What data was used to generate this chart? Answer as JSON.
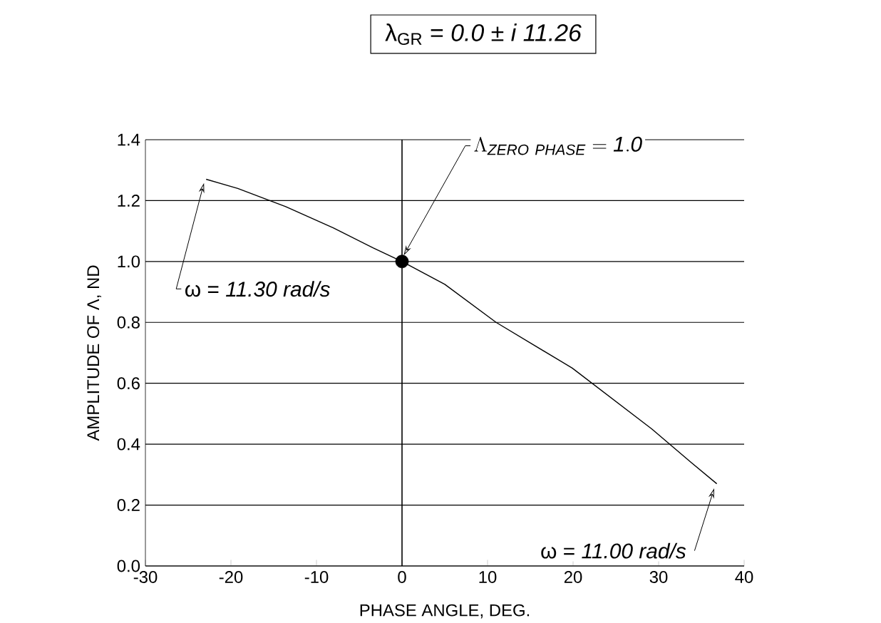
{
  "chart_data": {
    "type": "line",
    "title": "λ$_{GR}$ = *0.0 ± i 11.26*",
    "xlabel": "PHASE ANGLE, DEG.",
    "ylabel": "AMPLITUDE OF Λ, ND",
    "xlim": [
      -30,
      40
    ],
    "xticks": [
      -30,
      -20,
      -10,
      0,
      10,
      20,
      30,
      40
    ],
    "ylim": [
      0,
      1.4
    ],
    "yticks": [
      {
        "value": 0,
        "label": "0.0"
      },
      0.2,
      0.4,
      0.6,
      0.8,
      {
        "value": 1,
        "label": "1.0"
      },
      1.2,
      1.4
    ],
    "grid": "y",
    "ref_lines": [
      {
        "axis": "x",
        "value": 0,
        "color": "#000000"
      }
    ],
    "series": [
      {
        "color": "#000000",
        "marker": "none",
        "x": [
          -22.9,
          -19.2,
          -13.6,
          -8.0,
          -3.4,
          0,
          5,
          11,
          19.9,
          29.2,
          33.8,
          36.8
        ],
        "values": [
          1.27,
          1.24,
          1.18,
          1.11,
          1.045,
          1.0,
          0.925,
          0.8,
          0.65,
          0.45,
          0.34,
          0.27
        ]
      },
      {
        "type": "scatter",
        "color": "#000000",
        "marker": "circle",
        "x": [
          0
        ],
        "values": [
          1.0
        ]
      }
    ],
    "annotations": [
      {
        "text": "ω = *11.30 rad/s*",
        "x": -22.9,
        "y": 1.27
      },
      {
        "text": "\\Lambda_{\\mathit{ZERO\\ PHASE}} = \\mathit{1.0}",
        "x": 0,
        "y": 1.0
      },
      {
        "text": "ω = *11.00 rad/s*",
        "x": 36.8,
        "y": 0.27
      }
    ]
  }
}
